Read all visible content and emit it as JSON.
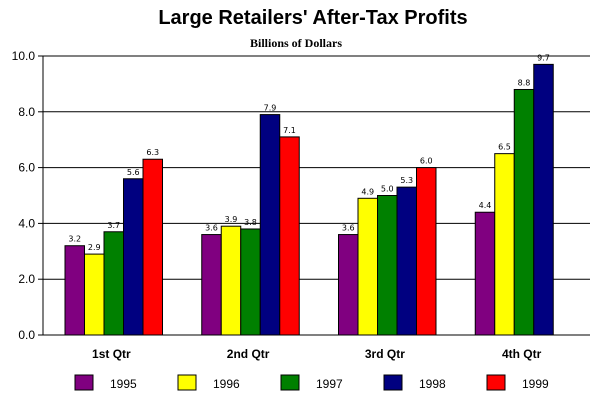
{
  "chart_data": {
    "type": "bar",
    "title": "Large Retailers' After-Tax Profits",
    "subtitle": "Billions of Dollars",
    "xlabel": "",
    "ylabel": "",
    "ylim": [
      0,
      10
    ],
    "yticks": [
      "0.0",
      "2.0",
      "4.0",
      "6.0",
      "8.0",
      "10.0"
    ],
    "grid": true,
    "legend_position": "bottom",
    "categories": [
      "1st Qtr",
      "2nd Qtr",
      "3rd Qtr",
      "4th Qtr"
    ],
    "series": [
      {
        "name": "1995",
        "color": "#800080",
        "values": [
          3.2,
          3.6,
          3.6,
          4.4
        ],
        "labels": [
          "3.2",
          "3.6",
          "3.6",
          "4.4"
        ]
      },
      {
        "name": "1996",
        "color": "#ffff00",
        "values": [
          2.9,
          3.9,
          4.9,
          6.5
        ],
        "labels": [
          "2.9",
          "3.9",
          "4.9",
          "6.5"
        ]
      },
      {
        "name": "1997",
        "color": "#008000",
        "values": [
          3.7,
          3.8,
          5.0,
          8.8
        ],
        "labels": [
          "3.7",
          "3.8",
          "5.0",
          "8.8"
        ]
      },
      {
        "name": "1998",
        "color": "#000080",
        "values": [
          5.6,
          7.9,
          5.3,
          9.7
        ],
        "labels": [
          "5.6",
          "7.9",
          "5.3",
          "9.7"
        ]
      },
      {
        "name": "1999",
        "color": "#ff0000",
        "values": [
          6.3,
          7.1,
          6.0,
          null
        ],
        "labels": [
          "6.3",
          "7.1",
          "6.0",
          null
        ]
      }
    ]
  }
}
